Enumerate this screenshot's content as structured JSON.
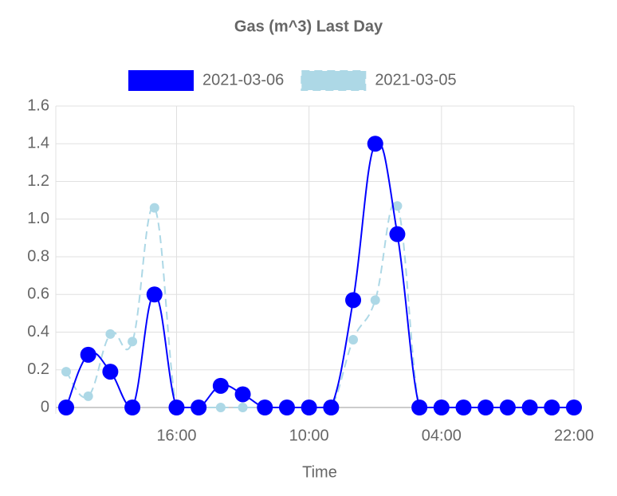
{
  "chart_data": {
    "type": "line",
    "title": "Gas (m^3) Last Day",
    "x_label": "Time",
    "categories": [
      null,
      null,
      null,
      null,
      null,
      "16:00",
      null,
      null,
      null,
      null,
      null,
      "10:00",
      null,
      null,
      null,
      null,
      null,
      "04:00",
      null,
      null,
      null,
      null,
      null,
      "22:00"
    ],
    "series": [
      {
        "name": "2021-03-06",
        "color": "#0000ff",
        "dashed": false,
        "values": [
          0,
          0.28,
          0.19,
          0,
          0.6,
          0,
          0,
          0.115,
          0.07,
          0,
          0,
          0,
          0,
          0.57,
          1.4,
          0.92,
          0,
          0,
          0,
          0,
          0,
          0,
          0,
          0
        ]
      },
      {
        "name": "2021-03-05",
        "color": "#add8e6",
        "dashed": true,
        "values": [
          0.19,
          0.06,
          0.39,
          0.35,
          1.06,
          0,
          0,
          0,
          0,
          0,
          0,
          0,
          0,
          0.36,
          0.57,
          1.07,
          0,
          0,
          0,
          0,
          0,
          0,
          0,
          0
        ]
      }
    ],
    "ylim": [
      0,
      1.6
    ],
    "yticks": [
      0,
      0.2,
      0.4,
      0.6,
      0.8,
      {
        "value": 1,
        "label": "1.0"
      },
      1.2,
      1.4,
      1.6
    ],
    "grid": true,
    "legend": "top"
  }
}
